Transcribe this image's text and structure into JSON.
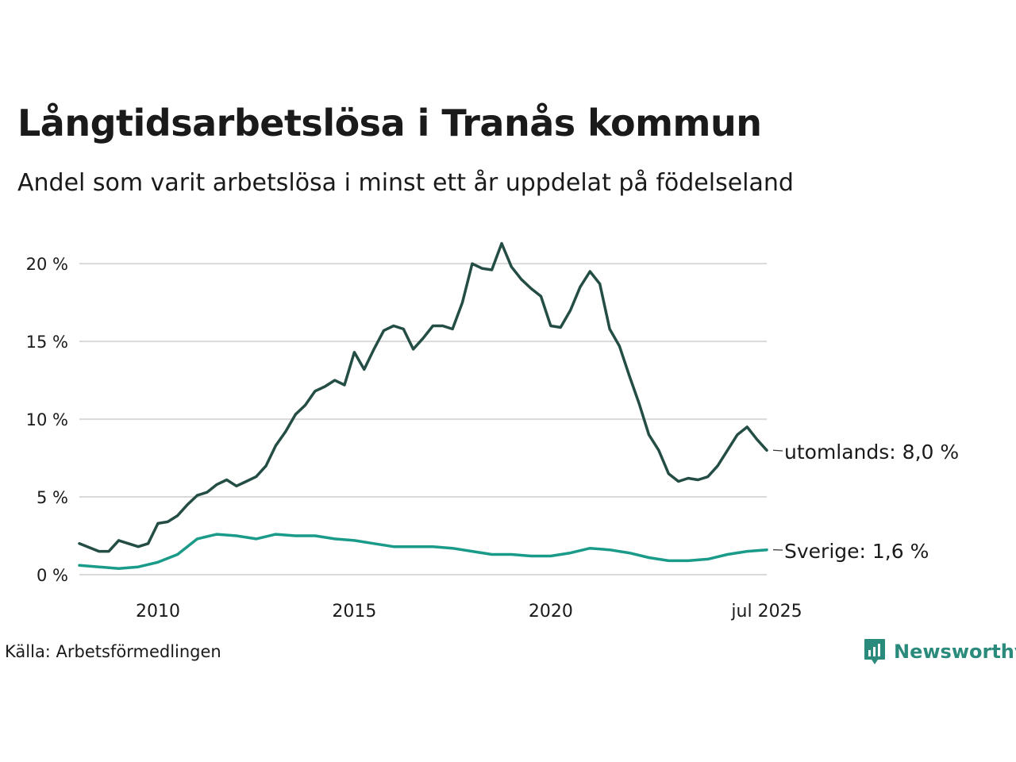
{
  "header": {
    "title": "Långtidsarbetslösa i Tranås kommun",
    "subtitle": "Andel som varit arbetslösa i minst ett år uppdelat på födelseland"
  },
  "footer": {
    "source": "Källa: Arbetsförmedlingen",
    "brand": "Newsworthy",
    "brand_icon": "bar-chart-icon",
    "brand_color": "#2a8a7c"
  },
  "chart_data": {
    "type": "line",
    "title": "Långtidsarbetslösa i Tranås kommun",
    "subtitle": "Andel som varit arbetslösa i minst ett år uppdelat på födelseland",
    "xlabel": "",
    "ylabel": "",
    "ylim": [
      0,
      22
    ],
    "xlim": [
      "2008-01",
      "2025-07"
    ],
    "y_ticks": [
      "0 %",
      "5 %",
      "10 %",
      "15 %",
      "20 %"
    ],
    "x_ticks": [
      "2010",
      "2015",
      "2020",
      "jul 2025"
    ],
    "grid": "horizontal",
    "legend": "end-of-line labels",
    "series": [
      {
        "name": "utomlands",
        "end_label": "utomlands: 8,0 %",
        "color": "#244e45",
        "points": [
          [
            "2008-01",
            2.0
          ],
          [
            "2008-07",
            1.5
          ],
          [
            "2008-10",
            1.5
          ],
          [
            "2009-01",
            2.2
          ],
          [
            "2009-07",
            1.8
          ],
          [
            "2009-10",
            2.0
          ],
          [
            "2010-01",
            3.3
          ],
          [
            "2010-04",
            3.4
          ],
          [
            "2010-07",
            3.8
          ],
          [
            "2010-10",
            4.5
          ],
          [
            "2011-01",
            5.1
          ],
          [
            "2011-04",
            5.3
          ],
          [
            "2011-07",
            5.8
          ],
          [
            "2011-10",
            6.1
          ],
          [
            "2012-01",
            5.7
          ],
          [
            "2012-04",
            6.0
          ],
          [
            "2012-07",
            6.3
          ],
          [
            "2012-10",
            7.0
          ],
          [
            "2013-01",
            8.3
          ],
          [
            "2013-04",
            9.2
          ],
          [
            "2013-07",
            10.3
          ],
          [
            "2013-10",
            10.9
          ],
          [
            "2014-01",
            11.8
          ],
          [
            "2014-04",
            12.1
          ],
          [
            "2014-07",
            12.5
          ],
          [
            "2014-10",
            12.2
          ],
          [
            "2015-01",
            14.3
          ],
          [
            "2015-04",
            13.2
          ],
          [
            "2015-07",
            14.5
          ],
          [
            "2015-10",
            15.7
          ],
          [
            "2016-01",
            16.0
          ],
          [
            "2016-04",
            15.8
          ],
          [
            "2016-07",
            14.5
          ],
          [
            "2016-10",
            15.2
          ],
          [
            "2017-01",
            16.0
          ],
          [
            "2017-04",
            16.0
          ],
          [
            "2017-07",
            15.8
          ],
          [
            "2017-10",
            17.5
          ],
          [
            "2018-01",
            20.0
          ],
          [
            "2018-04",
            19.7
          ],
          [
            "2018-07",
            19.6
          ],
          [
            "2018-10",
            21.3
          ],
          [
            "2019-01",
            19.8
          ],
          [
            "2019-04",
            19.0
          ],
          [
            "2019-07",
            18.4
          ],
          [
            "2019-10",
            17.9
          ],
          [
            "2020-01",
            16.0
          ],
          [
            "2020-04",
            15.9
          ],
          [
            "2020-07",
            17.0
          ],
          [
            "2020-10",
            18.5
          ],
          [
            "2021-01",
            19.5
          ],
          [
            "2021-04",
            18.7
          ],
          [
            "2021-07",
            15.8
          ],
          [
            "2021-10",
            14.7
          ],
          [
            "2022-01",
            12.8
          ],
          [
            "2022-04",
            11.0
          ],
          [
            "2022-07",
            9.0
          ],
          [
            "2022-10",
            8.0
          ],
          [
            "2023-01",
            6.5
          ],
          [
            "2023-04",
            6.0
          ],
          [
            "2023-07",
            6.2
          ],
          [
            "2023-10",
            6.1
          ],
          [
            "2024-01",
            6.3
          ],
          [
            "2024-04",
            7.0
          ],
          [
            "2024-07",
            8.0
          ],
          [
            "2024-10",
            9.0
          ],
          [
            "2025-01",
            9.5
          ],
          [
            "2025-04",
            8.7
          ],
          [
            "2025-07",
            8.0
          ]
        ]
      },
      {
        "name": "Sverige",
        "end_label": "Sverige: 1,6 %",
        "color": "#1a9a88",
        "points": [
          [
            "2008-01",
            0.6
          ],
          [
            "2008-07",
            0.5
          ],
          [
            "2009-01",
            0.4
          ],
          [
            "2009-07",
            0.5
          ],
          [
            "2010-01",
            0.8
          ],
          [
            "2010-07",
            1.3
          ],
          [
            "2011-01",
            2.3
          ],
          [
            "2011-07",
            2.6
          ],
          [
            "2012-01",
            2.5
          ],
          [
            "2012-07",
            2.3
          ],
          [
            "2013-01",
            2.6
          ],
          [
            "2013-07",
            2.5
          ],
          [
            "2014-01",
            2.5
          ],
          [
            "2014-07",
            2.3
          ],
          [
            "2015-01",
            2.2
          ],
          [
            "2015-07",
            2.0
          ],
          [
            "2016-01",
            1.8
          ],
          [
            "2016-07",
            1.8
          ],
          [
            "2017-01",
            1.8
          ],
          [
            "2017-07",
            1.7
          ],
          [
            "2018-01",
            1.5
          ],
          [
            "2018-07",
            1.3
          ],
          [
            "2019-01",
            1.3
          ],
          [
            "2019-07",
            1.2
          ],
          [
            "2020-01",
            1.2
          ],
          [
            "2020-07",
            1.4
          ],
          [
            "2021-01",
            1.7
          ],
          [
            "2021-07",
            1.6
          ],
          [
            "2022-01",
            1.4
          ],
          [
            "2022-07",
            1.1
          ],
          [
            "2023-01",
            0.9
          ],
          [
            "2023-07",
            0.9
          ],
          [
            "2024-01",
            1.0
          ],
          [
            "2024-07",
            1.3
          ],
          [
            "2025-01",
            1.5
          ],
          [
            "2025-07",
            1.6
          ]
        ]
      }
    ]
  }
}
